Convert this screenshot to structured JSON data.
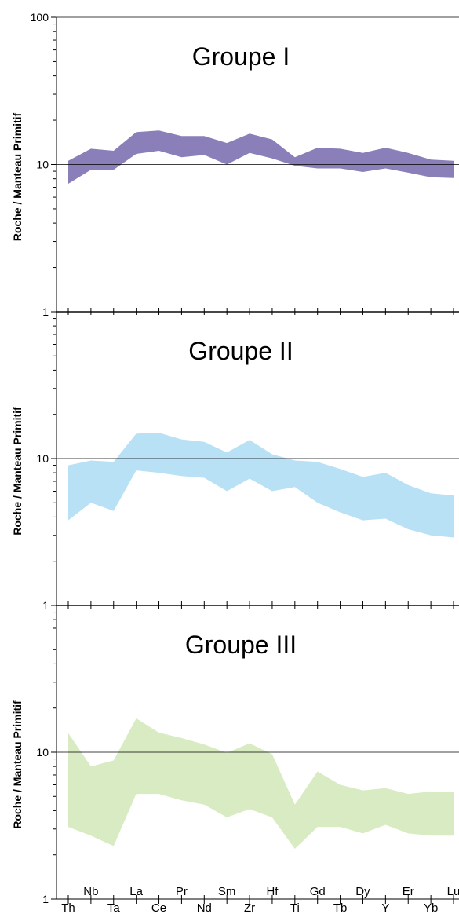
{
  "chart_data": {
    "type": "area",
    "elements": [
      "Th",
      "Nb",
      "Ta",
      "La",
      "Ce",
      "Pr",
      "Nd",
      "Sm",
      "Zr",
      "Hf",
      "Ti",
      "Gd",
      "Tb",
      "Dy",
      "Y",
      "Er",
      "Yb",
      "Lu"
    ],
    "upper_row_labels": [
      "Nb",
      "La",
      "Pr",
      "Sm",
      "Hf",
      "Gd",
      "Dy",
      "Er",
      "Lu"
    ],
    "lower_row_labels": [
      "Th",
      "Ta",
      "Ce",
      "Nd",
      "Zr",
      "Ti",
      "Tb",
      "Y",
      "Yb"
    ],
    "ylabel": "Roche / Manteau Primitif",
    "yscale": "log",
    "ylim": [
      1,
      100
    ],
    "y_tick_labels": [
      "1",
      "10",
      "100"
    ],
    "reference_line": 10,
    "panels": [
      {
        "title": "Groupe I",
        "color": "#8a7fb8",
        "upper": [
          10.6,
          12.8,
          12.4,
          16.6,
          17.0,
          15.6,
          15.6,
          14.0,
          16.2,
          14.8,
          11.2,
          13.0,
          12.8,
          12.0,
          13.0,
          12.0,
          10.8,
          10.6
        ],
        "lower": [
          7.4,
          9.2,
          9.2,
          11.8,
          12.4,
          11.2,
          11.6,
          10.0,
          12.0,
          11.0,
          9.8,
          9.4,
          9.4,
          8.9,
          9.4,
          8.8,
          8.2,
          8.1
        ]
      },
      {
        "title": "Groupe II",
        "color": "#b9e1f6",
        "upper": [
          9.0,
          9.7,
          9.5,
          14.8,
          15.0,
          13.5,
          13.0,
          11.0,
          13.4,
          10.7,
          9.7,
          9.5,
          8.5,
          7.5,
          8.0,
          6.6,
          5.8,
          5.6
        ],
        "lower": [
          3.8,
          5.0,
          4.4,
          8.3,
          8.0,
          7.6,
          7.4,
          6.0,
          7.3,
          6.0,
          6.4,
          5.0,
          4.3,
          3.8,
          3.9,
          3.3,
          3.0,
          2.9
        ]
      },
      {
        "title": "Groupe III",
        "color": "#d9ebc2",
        "upper": [
          13.5,
          8.0,
          8.8,
          17.0,
          13.6,
          12.5,
          11.3,
          9.9,
          11.5,
          9.7,
          4.4,
          7.4,
          6.0,
          5.5,
          5.7,
          5.2,
          5.4,
          5.4
        ],
        "lower": [
          3.1,
          2.7,
          2.3,
          5.2,
          5.2,
          4.7,
          4.4,
          3.6,
          4.1,
          3.6,
          2.2,
          3.1,
          3.1,
          2.8,
          3.2,
          2.8,
          2.7,
          2.7
        ]
      }
    ]
  }
}
